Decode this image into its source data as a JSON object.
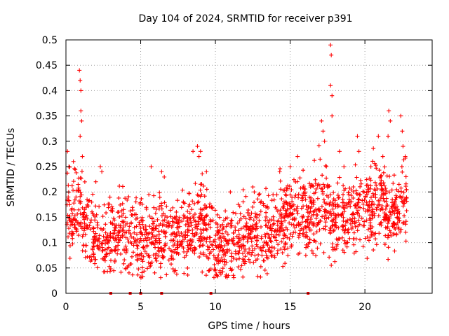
{
  "chart_data": {
    "type": "scatter",
    "title": "Day 104 of 2024, SRMTID for receiver p391",
    "xlabel": "GPS time / hours",
    "ylabel": "SRMTID / TECUs",
    "xlim": [
      0,
      24.5
    ],
    "ylim": [
      0,
      0.5
    ],
    "x_ticks": [
      0,
      5,
      10,
      15,
      20
    ],
    "x_tick_labels": [
      "0",
      "5",
      "10",
      "15",
      "20"
    ],
    "y_ticks": [
      0,
      0.05,
      0.1,
      0.15,
      0.2,
      0.25,
      0.3,
      0.35,
      0.4,
      0.45,
      0.5
    ],
    "y_tick_labels": [
      "0",
      "0.05",
      "0.1",
      "0.15",
      "0.2",
      "0.25",
      "0.3",
      "0.35",
      "0.4",
      "0.45",
      "0.5"
    ],
    "grid": true,
    "marker": "+",
    "color": "#ff0000",
    "trend": [
      [
        0.0,
        0.17
      ],
      [
        0.5,
        0.15
      ],
      [
        1.0,
        0.17
      ],
      [
        1.5,
        0.13
      ],
      [
        2.0,
        0.11
      ],
      [
        2.5,
        0.1
      ],
      [
        3.0,
        0.11
      ],
      [
        3.5,
        0.12
      ],
      [
        4.0,
        0.11
      ],
      [
        4.5,
        0.11
      ],
      [
        5.0,
        0.1
      ],
      [
        5.5,
        0.11
      ],
      [
        6.0,
        0.12
      ],
      [
        6.5,
        0.12
      ],
      [
        7.0,
        0.11
      ],
      [
        7.5,
        0.11
      ],
      [
        8.0,
        0.11
      ],
      [
        8.5,
        0.13
      ],
      [
        9.0,
        0.15
      ],
      [
        9.5,
        0.11
      ],
      [
        10.0,
        0.09
      ],
      [
        10.5,
        0.09
      ],
      [
        11.0,
        0.1
      ],
      [
        11.5,
        0.1
      ],
      [
        12.0,
        0.11
      ],
      [
        12.5,
        0.12
      ],
      [
        13.0,
        0.12
      ],
      [
        13.5,
        0.12
      ],
      [
        14.0,
        0.13
      ],
      [
        14.5,
        0.15
      ],
      [
        15.0,
        0.16
      ],
      [
        15.5,
        0.17
      ],
      [
        16.0,
        0.15
      ],
      [
        16.5,
        0.15
      ],
      [
        17.0,
        0.18
      ],
      [
        17.5,
        0.17
      ],
      [
        18.0,
        0.16
      ],
      [
        18.5,
        0.15
      ],
      [
        19.0,
        0.15
      ],
      [
        19.5,
        0.17
      ],
      [
        20.0,
        0.16
      ],
      [
        20.5,
        0.17
      ],
      [
        21.0,
        0.19
      ],
      [
        21.5,
        0.15
      ],
      [
        22.0,
        0.15
      ],
      [
        22.5,
        0.18
      ],
      [
        22.8,
        0.17
      ]
    ],
    "spikes": [
      [
        0.1,
        0.28
      ],
      [
        0.2,
        0.25
      ],
      [
        0.5,
        0.26
      ],
      [
        0.9,
        0.44
      ],
      [
        0.95,
        0.42
      ],
      [
        1.0,
        0.4
      ],
      [
        1.0,
        0.36
      ],
      [
        1.05,
        0.34
      ],
      [
        0.95,
        0.31
      ],
      [
        1.1,
        0.27
      ],
      [
        2.3,
        0.25
      ],
      [
        2.4,
        0.24
      ],
      [
        2.0,
        0.22
      ],
      [
        5.7,
        0.25
      ],
      [
        6.4,
        0.24
      ],
      [
        8.5,
        0.28
      ],
      [
        8.8,
        0.29
      ],
      [
        8.9,
        0.27
      ],
      [
        9.0,
        0.28
      ],
      [
        9.4,
        0.24
      ],
      [
        11.0,
        0.2
      ],
      [
        12.6,
        0.2
      ],
      [
        14.3,
        0.24
      ],
      [
        15.0,
        0.25
      ],
      [
        15.5,
        0.27
      ],
      [
        17.1,
        0.34
      ],
      [
        17.2,
        0.32
      ],
      [
        17.3,
        0.3
      ],
      [
        17.7,
        0.49
      ],
      [
        17.75,
        0.47
      ],
      [
        17.7,
        0.41
      ],
      [
        17.8,
        0.39
      ],
      [
        17.8,
        0.35
      ],
      [
        18.3,
        0.28
      ],
      [
        18.6,
        0.25
      ],
      [
        19.5,
        0.31
      ],
      [
        19.6,
        0.28
      ],
      [
        20.4,
        0.25
      ],
      [
        20.9,
        0.31
      ],
      [
        21.2,
        0.27
      ],
      [
        21.6,
        0.36
      ],
      [
        21.7,
        0.34
      ],
      [
        21.55,
        0.31
      ],
      [
        22.4,
        0.35
      ],
      [
        22.5,
        0.32
      ],
      [
        22.55,
        0.29
      ],
      [
        22.7,
        0.27
      ],
      [
        22.75,
        0.23
      ]
    ],
    "zero_points": [
      3.0,
      4.3,
      5.0,
      6.4,
      9.7,
      16.2
    ]
  }
}
